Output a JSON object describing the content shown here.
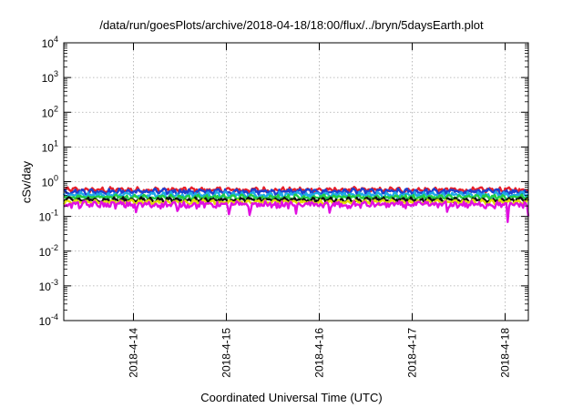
{
  "chart_data": {
    "type": "line",
    "title": "/data/run/goesPlots/archive/2018-04-18/18:00/flux/../bryn/5daysEarth.plot",
    "xlabel": "Coordinated Universal Time (UTC)",
    "ylabel": "cSv/day",
    "yscale": "log",
    "ylim": [
      0.0001,
      10000
    ],
    "xlim": [
      0,
      5
    ],
    "grid": true,
    "y_ticks": [
      {
        "base": "10",
        "exp": "-4",
        "value": 0.0001
      },
      {
        "base": "10",
        "exp": "-3",
        "value": 0.001
      },
      {
        "base": "10",
        "exp": "-2",
        "value": 0.01
      },
      {
        "base": "10",
        "exp": "-1",
        "value": 0.1
      },
      {
        "base": "10",
        "exp": "0",
        "value": 1
      },
      {
        "base": "10",
        "exp": "1",
        "value": 10
      },
      {
        "base": "10",
        "exp": "2",
        "value": 100
      },
      {
        "base": "10",
        "exp": "3",
        "value": 1000
      },
      {
        "base": "10",
        "exp": "4",
        "value": 10000
      }
    ],
    "x_ticks": [
      {
        "label": "2018-4-14",
        "value": 0.75
      },
      {
        "label": "2018-4-15",
        "value": 1.75
      },
      {
        "label": "2018-4-16",
        "value": 2.75
      },
      {
        "label": "2018-4-17",
        "value": 3.75
      },
      {
        "label": "2018-4-18",
        "value": 4.75
      }
    ],
    "series": [
      {
        "color": "#e8202a",
        "level": 0.58,
        "amplitude": 0.1,
        "dips": []
      },
      {
        "color": "#1f3fd0",
        "level": 0.52,
        "amplitude": 0.09,
        "dips": []
      },
      {
        "color": "#1fa8e8",
        "level": 0.42,
        "amplitude": 0.08,
        "dips": [
          [
            0.45,
            0.25
          ],
          [
            1.25,
            0.25
          ],
          [
            2.3,
            0.28
          ],
          [
            3.6,
            0.3
          ],
          [
            4.6,
            0.3
          ]
        ]
      },
      {
        "color": "#22cc44",
        "level": 0.36,
        "amplitude": 0.05,
        "dips": []
      },
      {
        "color": "#111111",
        "level": 0.3,
        "amplitude": 0.04,
        "dips": []
      },
      {
        "color": "#e0e000",
        "level": 0.26,
        "amplitude": 0.03,
        "dips": []
      },
      {
        "color": "#e010e0",
        "level": 0.22,
        "amplitude": 0.05,
        "dips": [
          [
            0.78,
            0.12
          ],
          [
            1.22,
            0.13
          ],
          [
            1.78,
            0.1
          ],
          [
            2.0,
            0.11
          ],
          [
            2.5,
            0.12
          ],
          [
            2.86,
            0.12
          ],
          [
            3.05,
            0.15
          ],
          [
            4.13,
            0.11
          ],
          [
            4.78,
            0.05
          ],
          [
            5.0,
            0.1
          ]
        ]
      }
    ]
  }
}
